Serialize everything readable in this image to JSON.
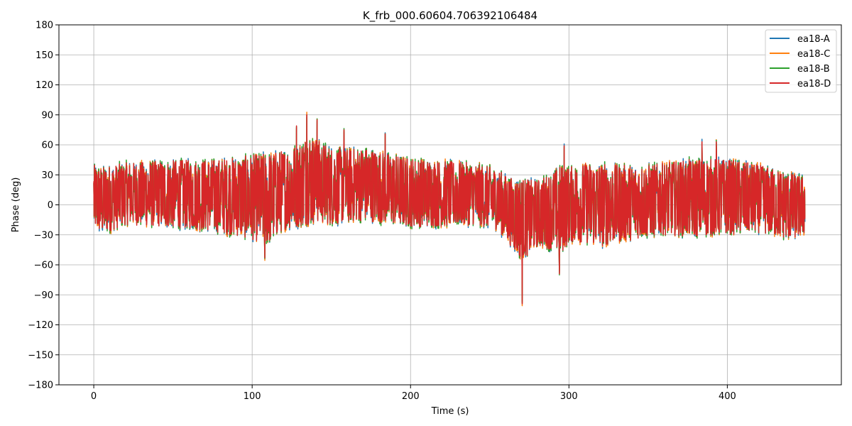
{
  "chart_data": {
    "type": "line",
    "title": "K_frb_000.60604.706392106484",
    "xlabel": "Time (s)",
    "ylabel": "Phase (deg)",
    "xlim": [
      -22,
      472
    ],
    "ylim": [
      -180,
      180
    ],
    "x_ticks": [
      0,
      100,
      200,
      300,
      400
    ],
    "y_ticks": [
      -180,
      -150,
      -120,
      -90,
      -60,
      -30,
      0,
      30,
      60,
      90,
      120,
      150,
      180
    ],
    "grid": true,
    "legend_position": "top-right",
    "x_range_data": [
      0,
      449
    ],
    "series": [
      {
        "name": "ea18-A",
        "color": "#1f77b4"
      },
      {
        "name": "ea18-C",
        "color": "#ff7f0e"
      },
      {
        "name": "ea18-B",
        "color": "#2ca02c"
      },
      {
        "name": "ea18-D",
        "color": "#d62728",
        "envelope": {
          "x": [
            0,
            5,
            20,
            40,
            60,
            80,
            100,
            110,
            120,
            130,
            135,
            140,
            150,
            160,
            170,
            180,
            190,
            200,
            220,
            240,
            255,
            260,
            265,
            270,
            275,
            280,
            290,
            295,
            300,
            310,
            320,
            330,
            340,
            350,
            360,
            380,
            400,
            420,
            440,
            449
          ],
          "upper": [
            40,
            38,
            42,
            44,
            45,
            46,
            50,
            52,
            55,
            62,
            72,
            66,
            58,
            56,
            58,
            54,
            50,
            47,
            44,
            42,
            36,
            30,
            26,
            27,
            25,
            25,
            33,
            40,
            38,
            42,
            42,
            40,
            40,
            40,
            42,
            46,
            46,
            40,
            32,
            28
          ],
          "lower": [
            -25,
            -30,
            -20,
            -22,
            -24,
            -28,
            -35,
            -40,
            -25,
            -22,
            -20,
            -18,
            -20,
            -18,
            -16,
            -18,
            -20,
            -22,
            -22,
            -20,
            -25,
            -35,
            -45,
            -55,
            -50,
            -42,
            -45,
            -50,
            -38,
            -38,
            -42,
            -38,
            -35,
            -32,
            -30,
            -32,
            -30,
            -28,
            -35,
            -30
          ]
        },
        "spikes": [
          {
            "x": 134.5,
            "y": 90
          },
          {
            "x": 141,
            "y": 85
          },
          {
            "x": 128,
            "y": 79
          },
          {
            "x": 158,
            "y": 75
          },
          {
            "x": 184,
            "y": 71
          },
          {
            "x": 270.5,
            "y": -99
          },
          {
            "x": 294,
            "y": -69
          },
          {
            "x": 297,
            "y": 59
          },
          {
            "x": 108,
            "y": -53
          },
          {
            "x": 384,
            "y": 63
          },
          {
            "x": 393,
            "y": 63
          }
        ]
      }
    ]
  }
}
